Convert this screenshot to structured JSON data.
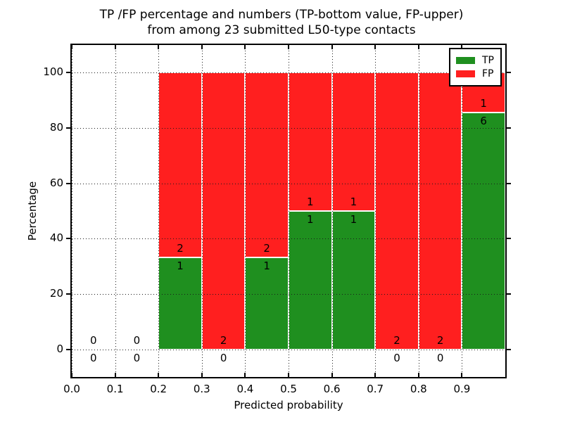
{
  "chart_data": {
    "type": "bar",
    "stacked": true,
    "title_line1": "TP /FP percentage and numbers (TP-bottom value, FP-upper)",
    "title_line2": "from among 23 submitted L50-type contacts",
    "xlabel": "Predicted probability",
    "ylabel": "Percentage",
    "xlim": [
      0.0,
      1.0
    ],
    "ylim": [
      -10,
      110
    ],
    "xticks": [
      "0.0",
      "0.1",
      "0.2",
      "0.3",
      "0.4",
      "0.5",
      "0.6",
      "0.7",
      "0.8",
      "0.9"
    ],
    "yticks": [
      "0",
      "20",
      "40",
      "60",
      "80",
      "100"
    ],
    "grid": "dotted, drawn above bars, both axes",
    "legend_position": "upper right",
    "legend": [
      {
        "label": "TP",
        "color": "#1f8f1f"
      },
      {
        "label": "FP",
        "color": "#ff1f1f"
      }
    ],
    "bins": [
      {
        "x0": 0.0,
        "x1": 0.1,
        "tp_count": 0,
        "fp_count": 0,
        "tp_pct": 0,
        "fp_pct": 0
      },
      {
        "x0": 0.1,
        "x1": 0.2,
        "tp_count": 0,
        "fp_count": 0,
        "tp_pct": 0,
        "fp_pct": 0
      },
      {
        "x0": 0.2,
        "x1": 0.3,
        "tp_count": 1,
        "fp_count": 2,
        "tp_pct": 33.33,
        "fp_pct": 66.67
      },
      {
        "x0": 0.3,
        "x1": 0.4,
        "tp_count": 0,
        "fp_count": 2,
        "tp_pct": 0,
        "fp_pct": 100
      },
      {
        "x0": 0.4,
        "x1": 0.5,
        "tp_count": 1,
        "fp_count": 2,
        "tp_pct": 33.33,
        "fp_pct": 66.67
      },
      {
        "x0": 0.5,
        "x1": 0.6,
        "tp_count": 1,
        "fp_count": 1,
        "tp_pct": 50,
        "fp_pct": 50
      },
      {
        "x0": 0.6,
        "x1": 0.7,
        "tp_count": 1,
        "fp_count": 1,
        "tp_pct": 50,
        "fp_pct": 50
      },
      {
        "x0": 0.7,
        "x1": 0.8,
        "tp_count": 0,
        "fp_count": 2,
        "tp_pct": 0,
        "fp_pct": 100
      },
      {
        "x0": 0.8,
        "x1": 0.9,
        "tp_count": 0,
        "fp_count": 2,
        "tp_pct": 0,
        "fp_pct": 100
      },
      {
        "x0": 0.9,
        "x1": 1.0,
        "tp_count": 6,
        "fp_count": 1,
        "tp_pct": 85.71,
        "fp_pct": 14.29
      }
    ]
  }
}
